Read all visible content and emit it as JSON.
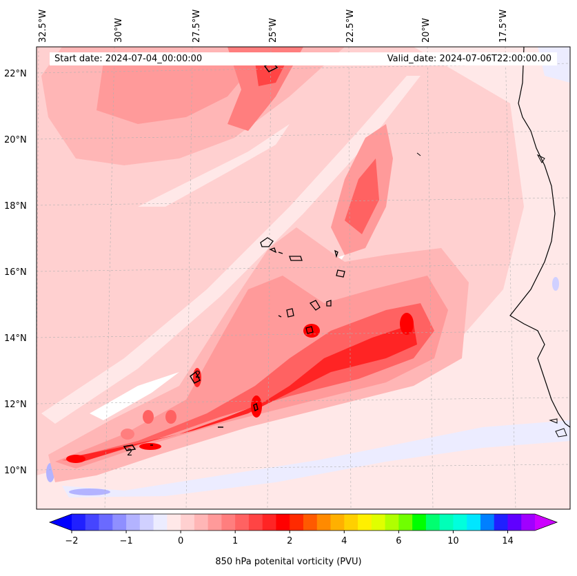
{
  "start_date_text": "Start date: 2024-07-04_00:00:00",
  "valid_date_text": "Valid_date: 2024-07-06T22:00:00.00",
  "latitude_labels": [
    "22°N",
    "20°N",
    "18°N",
    "16°N",
    "14°N",
    "12°N",
    "10°N"
  ],
  "longitude_labels": [
    "32.5°W",
    "30°W",
    "27.5°W",
    "25°W",
    "22.5°W",
    "20°W",
    "17.5°W"
  ],
  "colorbar": {
    "label": "850 hPa potenital vorticity (PVU)",
    "tick_labels": [
      "−2",
      "−1",
      "0",
      "1",
      "2",
      "4",
      "6",
      "10",
      "14"
    ],
    "colors": [
      "#0000ff",
      "#2020ff",
      "#4545ff",
      "#6a6aff",
      "#8f8fff",
      "#b3b3ff",
      "#d0d0ff",
      "#ececff",
      "#ffe8e8",
      "#ffd0d0",
      "#ffb6b6",
      "#ff9a9a",
      "#ff7e7e",
      "#ff6262",
      "#ff4444",
      "#ff2424",
      "#ff0000",
      "#ff2a00",
      "#ff5a00",
      "#ff8a00",
      "#ffb000",
      "#ffd000",
      "#fff000",
      "#e0ff00",
      "#b0ff00",
      "#70ff00",
      "#00ff00",
      "#00ff70",
      "#00ffb8",
      "#00ffdd",
      "#00e6ff",
      "#0080ff",
      "#2020ff",
      "#6000ff",
      "#a000ff",
      "#cc00ff"
    ]
  },
  "contour_labels": [
    "2",
    "2"
  ]
}
